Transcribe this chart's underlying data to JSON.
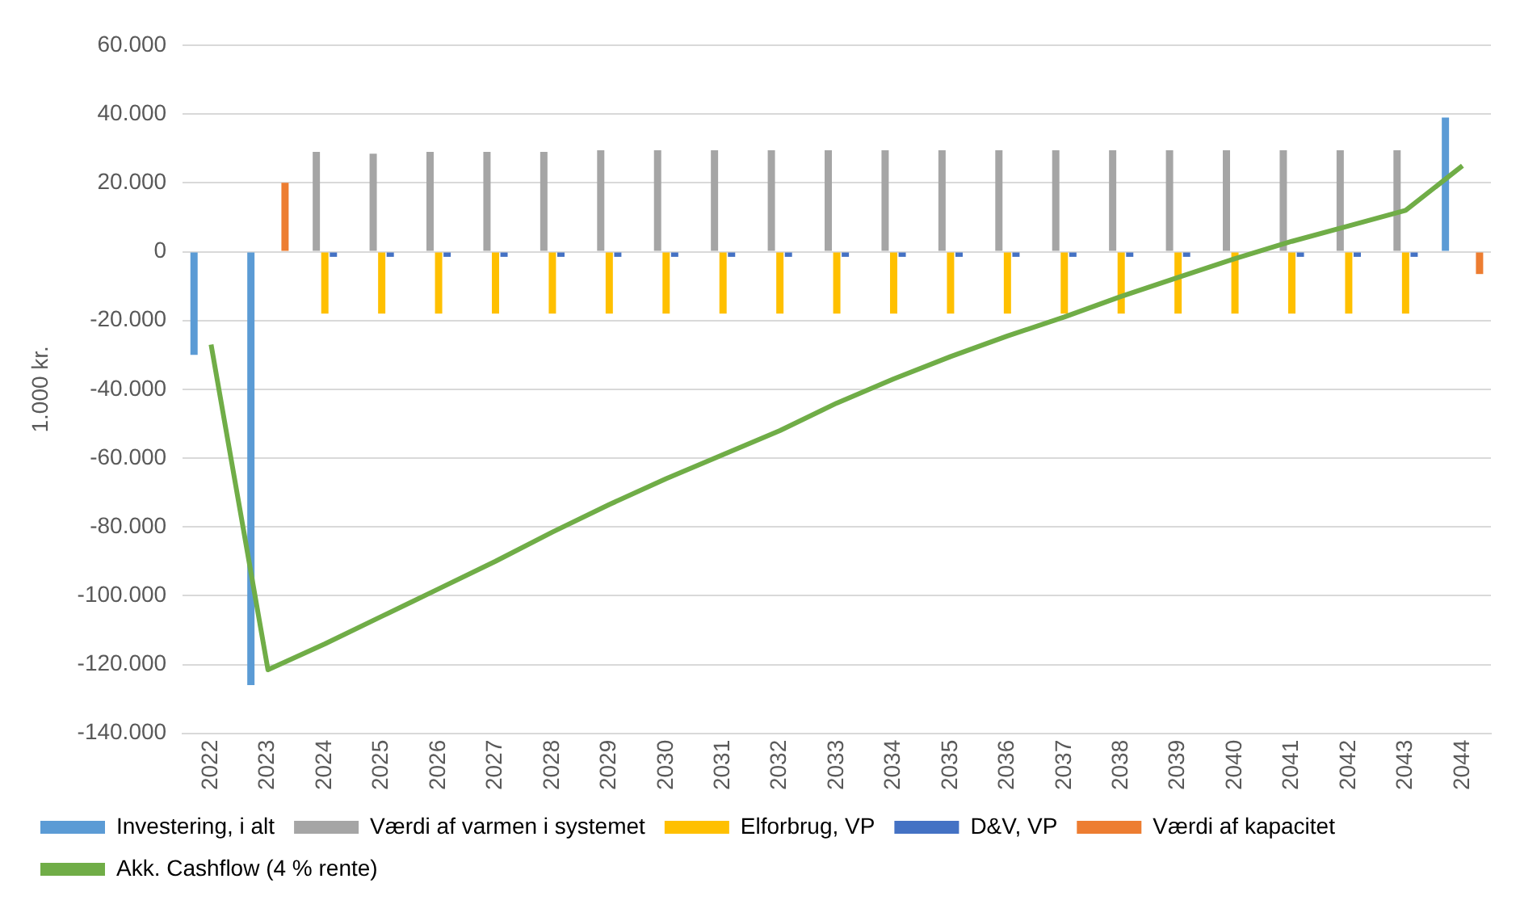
{
  "chart_data": {
    "type": "bar",
    "ylabel": "1.000 kr.",
    "categories": [
      "2022",
      "2023",
      "2024",
      "2025",
      "2026",
      "2027",
      "2028",
      "2029",
      "2030",
      "2031",
      "2032",
      "2033",
      "2034",
      "2035",
      "2036",
      "2037",
      "2038",
      "2039",
      "2040",
      "2041",
      "2042",
      "2043",
      "2044"
    ],
    "ylim": [
      -140000,
      60000
    ],
    "yticks": [
      {
        "value": -140000,
        "label": "-140.000"
      },
      {
        "value": -120000,
        "label": "-120.000"
      },
      {
        "value": -100000,
        "label": "-100.000"
      },
      {
        "value": -80000,
        "label": "-80.000"
      },
      {
        "value": -60000,
        "label": "-60.000"
      },
      {
        "value": -40000,
        "label": "-40.000"
      },
      {
        "value": -20000,
        "label": "-20.000"
      },
      0,
      {
        "value": 20000,
        "label": "20.000"
      },
      {
        "value": 40000,
        "label": "40.000"
      },
      {
        "value": 60000,
        "label": "60.000"
      }
    ],
    "grid": "y",
    "legend": "bottom",
    "series": [
      {
        "name": "Investering, i alt",
        "color": "#5b9bd5",
        "values": [
          -30000,
          -126000,
          null,
          null,
          null,
          null,
          null,
          null,
          null,
          null,
          null,
          null,
          null,
          null,
          null,
          null,
          null,
          null,
          null,
          null,
          null,
          null,
          39000
        ]
      },
      {
        "name": "Værdi af varmen i systemet",
        "color": "#a5a5a5",
        "values": [
          null,
          null,
          29000,
          28500,
          29000,
          29000,
          29000,
          29500,
          29500,
          29500,
          29500,
          29500,
          29500,
          29500,
          29500,
          29500,
          29500,
          29500,
          29500,
          29500,
          29500,
          29500,
          null
        ]
      },
      {
        "name": "Elforbrug, VP",
        "color": "#ffc000",
        "values": [
          null,
          null,
          -18000,
          -18000,
          -18000,
          -18000,
          -18000,
          -18000,
          -18000,
          -18000,
          -18000,
          -18000,
          -18000,
          -18000,
          -18000,
          -18000,
          -18000,
          -18000,
          -18000,
          -18000,
          -18000,
          -18000,
          null
        ]
      },
      {
        "name": "D&V, VP",
        "color": "#4472c4",
        "values": [
          null,
          null,
          -1500,
          -1500,
          -1500,
          -1500,
          -1500,
          -1500,
          -1500,
          -1500,
          -1500,
          -1500,
          -1500,
          -1500,
          -1500,
          -1500,
          -1500,
          -1500,
          null,
          -1500,
          -1500,
          -1500,
          null
        ]
      },
      {
        "name": "Værdi af kapacitet",
        "color": "#ed7d31",
        "values": [
          null,
          20000,
          null,
          null,
          null,
          null,
          null,
          null,
          null,
          null,
          null,
          null,
          null,
          null,
          null,
          null,
          null,
          null,
          null,
          null,
          null,
          null,
          -6500
        ]
      },
      {
        "name": "Akk. Cashflow (4 % rente)",
        "type": "line",
        "color": "#70ad47",
        "marker": "none",
        "line_style": "solid",
        "values": [
          -27000,
          -121500,
          -114000,
          -106000,
          -98000,
          -90000,
          -81500,
          -73500,
          -66000,
          -59000,
          -52000,
          -44000,
          -37000,
          -30500,
          -24500,
          -19000,
          -13000,
          -7500,
          -2000,
          3000,
          7500,
          12000,
          25000
        ]
      }
    ]
  }
}
